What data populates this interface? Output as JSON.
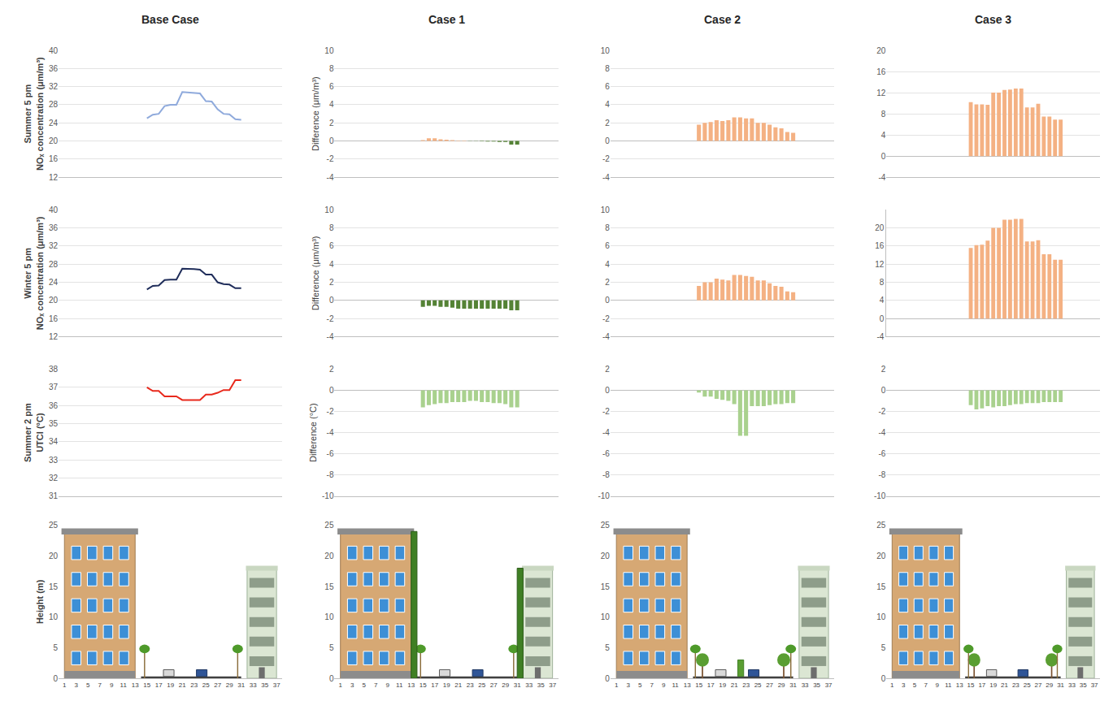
{
  "chart_data": [
    {
      "type": "line",
      "title": "Base Case",
      "y_label": [
        "Summer 5 pm",
        "NOₓ concentration (μm/m³)"
      ],
      "color": "#8faadc",
      "x": [
        15,
        16,
        17,
        18,
        19,
        20,
        21,
        22,
        23,
        24,
        25,
        26,
        27,
        28,
        29,
        30,
        31
      ],
      "values": [
        25,
        25.8,
        26,
        27.7,
        28,
        28,
        30.8,
        30.7,
        30.5,
        30.5,
        28.8,
        28.7,
        27,
        26,
        25.9,
        24.8,
        24.7
      ],
      "xlim": [
        0,
        38
      ],
      "ylim": [
        12,
        40
      ],
      "yticks": [
        12,
        16,
        20,
        24,
        28,
        32,
        36,
        40
      ],
      "grid": true,
      "tick_labels": "y"
    },
    {
      "type": "bar",
      "title": "Case 1",
      "y_label": "Difference (μm/m³)",
      "colors": [
        "#f4b183",
        "#f4b183",
        "#f4b183",
        "#f4b183",
        "#f4b183",
        "#f4b183",
        "#f4b183",
        "#f4b183",
        "#548235",
        "#548235",
        "#548235",
        "#548235",
        "#548235",
        "#548235",
        "#548235",
        "#548235",
        "#548235"
      ],
      "x": [
        15,
        16,
        17,
        18,
        19,
        20,
        21,
        22,
        23,
        24,
        25,
        26,
        27,
        28,
        29,
        30,
        31
      ],
      "values": [
        0.1,
        0.3,
        0.3,
        0.2,
        0.15,
        0.1,
        0.05,
        0.05,
        -0.02,
        -0.02,
        -0.03,
        -0.05,
        -0.05,
        -0.1,
        -0.1,
        -0.4,
        -0.4
      ],
      "xlim": [
        0,
        38
      ],
      "ylim": [
        -4,
        10
      ],
      "yticks": [
        -4,
        -2,
        0,
        2,
        4,
        6,
        8,
        10
      ],
      "grid": true,
      "tick_labels": "y"
    },
    {
      "type": "bar",
      "title": "Case 2",
      "color": "#f4b183",
      "x": [
        15,
        16,
        17,
        18,
        19,
        20,
        21,
        22,
        23,
        24,
        25,
        26,
        27,
        28,
        29,
        30,
        31
      ],
      "values": [
        1.8,
        2.0,
        2.1,
        2.3,
        2.2,
        2.3,
        2.6,
        2.6,
        2.5,
        2.5,
        2.0,
        2.0,
        1.8,
        1.5,
        1.4,
        1.0,
        0.9
      ],
      "xlim": [
        0,
        38
      ],
      "ylim": [
        -4,
        10
      ],
      "yticks": [
        -4,
        -2,
        0,
        2,
        4,
        6,
        8,
        10
      ],
      "grid": true,
      "tick_labels": "y"
    },
    {
      "type": "bar",
      "title": "Case 3",
      "color": "#f4b183",
      "x": [
        15,
        16,
        17,
        18,
        19,
        20,
        21,
        22,
        23,
        24,
        25,
        26,
        27,
        28,
        29,
        30,
        31
      ],
      "values": [
        10.2,
        9.8,
        9.8,
        9.7,
        12,
        12,
        12.5,
        12.6,
        12.8,
        12.8,
        9.2,
        9.2,
        9.9,
        7.5,
        7.5,
        6.9,
        6.9
      ],
      "xlim": [
        0,
        38
      ],
      "ylim": [
        -4,
        20
      ],
      "yticks": [
        -4,
        0,
        4,
        8,
        12,
        16,
        20
      ],
      "grid": true,
      "tick_labels": "y"
    },
    {
      "type": "line",
      "y_label": [
        "Winter 5 pm",
        "NOₓ concentration (μm/m³)"
      ],
      "color": "#1f2d5a",
      "x": [
        15,
        16,
        17,
        18,
        19,
        20,
        21,
        22,
        23,
        24,
        25,
        26,
        27,
        28,
        29,
        30,
        31
      ],
      "values": [
        22.4,
        23.2,
        23.3,
        24.5,
        24.6,
        24.6,
        27,
        27,
        26.9,
        26.8,
        25.7,
        25.7,
        24,
        23.6,
        23.5,
        22.7,
        22.7
      ],
      "xlim": [
        0,
        38
      ],
      "ylim": [
        12,
        40
      ],
      "yticks": [
        12,
        16,
        20,
        24,
        28,
        32,
        36,
        40
      ],
      "grid": true,
      "tick_labels": "y"
    },
    {
      "type": "bar",
      "y_label": "Difference (μm/m³)",
      "color": "#548235",
      "x": [
        15,
        16,
        17,
        18,
        19,
        20,
        21,
        22,
        23,
        24,
        25,
        26,
        27,
        28,
        29,
        30,
        31
      ],
      "values": [
        -0.7,
        -0.6,
        -0.6,
        -0.7,
        -0.7,
        -0.8,
        -0.9,
        -0.9,
        -0.9,
        -0.9,
        -0.9,
        -0.9,
        -0.9,
        -0.9,
        -0.9,
        -1.1,
        -1.1
      ],
      "xlim": [
        0,
        38
      ],
      "ylim": [
        -4,
        10
      ],
      "yticks": [
        -4,
        -2,
        0,
        2,
        4,
        6,
        8,
        10
      ],
      "grid": true,
      "tick_labels": "y"
    },
    {
      "type": "bar",
      "color": "#f4b183",
      "x": [
        15,
        16,
        17,
        18,
        19,
        20,
        21,
        22,
        23,
        24,
        25,
        26,
        27,
        28,
        29,
        30,
        31
      ],
      "values": [
        1.6,
        2.0,
        2.0,
        2.4,
        2.3,
        2.2,
        2.8,
        2.8,
        2.7,
        2.6,
        2.2,
        2.2,
        1.9,
        1.6,
        1.5,
        1.0,
        0.9
      ],
      "xlim": [
        0,
        38
      ],
      "ylim": [
        -4,
        10
      ],
      "yticks": [
        -4,
        -2,
        0,
        2,
        4,
        6,
        8,
        10
      ],
      "grid": true,
      "tick_labels": "y"
    },
    {
      "type": "bar",
      "color": "#f4b183",
      "x": [
        15,
        16,
        17,
        18,
        19,
        20,
        21,
        22,
        23,
        24,
        25,
        26,
        27,
        28,
        29,
        30,
        31
      ],
      "values": [
        15.6,
        16.2,
        16.3,
        17.2,
        20,
        20,
        21.8,
        21.8,
        22,
        22,
        17,
        17,
        17.3,
        14.2,
        14.2,
        13,
        13
      ],
      "xlim": [
        0,
        38
      ],
      "ylim": [
        -4,
        24
      ],
      "yticks": [
        -4,
        0,
        4,
        8,
        12,
        16,
        20
      ],
      "grid": true,
      "tick_labels": "y"
    },
    {
      "type": "line",
      "y_label": [
        "Summer 2 pm",
        "UTCI (°C)"
      ],
      "color": "#e8291c",
      "x": [
        15,
        16,
        17,
        18,
        19,
        20,
        21,
        22,
        23,
        24,
        25,
        26,
        27,
        28,
        29,
        30,
        31
      ],
      "values": [
        37,
        36.8,
        36.8,
        36.5,
        36.5,
        36.5,
        36.3,
        36.3,
        36.3,
        36.3,
        36.6,
        36.6,
        36.7,
        36.85,
        36.85,
        37.4,
        37.4
      ],
      "xlim": [
        0,
        38
      ],
      "ylim": [
        31,
        38
      ],
      "yticks": [
        31,
        32,
        33,
        34,
        35,
        36,
        37,
        38
      ],
      "grid": true,
      "tick_labels": "y"
    },
    {
      "type": "bar",
      "y_label": "Difference (°C)",
      "color": "#a9d18e",
      "x": [
        15,
        16,
        17,
        18,
        19,
        20,
        21,
        22,
        23,
        24,
        25,
        26,
        27,
        28,
        29,
        30,
        31
      ],
      "values": [
        -1.6,
        -1.4,
        -1.3,
        -1.2,
        -1.2,
        -1.1,
        -1.1,
        -1.1,
        -1.0,
        -1.0,
        -1.1,
        -1.1,
        -1.2,
        -1.2,
        -1.3,
        -1.6,
        -1.6
      ],
      "xlim": [
        0,
        38
      ],
      "ylim": [
        -10,
        2
      ],
      "yticks": [
        -10,
        -8,
        -6,
        -4,
        -2,
        0,
        2
      ],
      "grid": true,
      "tick_labels": "y"
    },
    {
      "type": "bar",
      "color": "#a9d18e",
      "x": [
        15,
        16,
        17,
        18,
        19,
        20,
        21,
        22,
        23,
        24,
        25,
        26,
        27,
        28,
        29,
        30,
        31
      ],
      "values": [
        -0.2,
        -0.6,
        -0.6,
        -0.8,
        -0.9,
        -1.0,
        -1.3,
        -4.3,
        -4.3,
        -1.5,
        -1.5,
        -1.5,
        -1.4,
        -1.3,
        -1.3,
        -1.2,
        -1.2
      ],
      "xlim": [
        0,
        38
      ],
      "ylim": [
        -10,
        2
      ],
      "yticks": [
        -10,
        -8,
        -6,
        -4,
        -2,
        0,
        2
      ],
      "grid": true,
      "tick_labels": "y"
    },
    {
      "type": "bar",
      "color": "#a9d18e",
      "x": [
        15,
        16,
        17,
        18,
        19,
        20,
        21,
        22,
        23,
        24,
        25,
        26,
        27,
        28,
        29,
        30,
        31
      ],
      "values": [
        -1.4,
        -1.8,
        -1.7,
        -1.5,
        -1.6,
        -1.5,
        -1.5,
        -1.4,
        -1.3,
        -1.3,
        -1.2,
        -1.2,
        -1.2,
        -1.1,
        -1.1,
        -1.1,
        -1.1
      ],
      "xlim": [
        0,
        38
      ],
      "ylim": [
        -10,
        2
      ],
      "yticks": [
        -10,
        -8,
        -6,
        -4,
        -2,
        0,
        2
      ],
      "grid": true,
      "tick_labels": "y"
    },
    {
      "type": "section",
      "y_label": "Height (m)",
      "xlim": [
        0,
        38
      ],
      "xticks": [
        1,
        3,
        5,
        7,
        9,
        11,
        13,
        15,
        17,
        19,
        21,
        23,
        25,
        27,
        29,
        31,
        33,
        35,
        37
      ],
      "ylim": [
        0,
        25
      ],
      "yticks": [
        0,
        5,
        10,
        15,
        20,
        25
      ],
      "grid": false
    },
    {
      "type": "section",
      "xlim": [
        0,
        38
      ],
      "xticks": [
        1,
        3,
        5,
        7,
        9,
        11,
        13,
        15,
        17,
        19,
        21,
        23,
        25,
        27,
        29,
        31,
        33,
        35,
        37
      ],
      "ylim": [
        0,
        25
      ],
      "yticks": [
        0,
        5,
        10,
        15,
        20,
        25
      ],
      "grid": false
    },
    {
      "type": "section",
      "xlim": [
        0,
        38
      ],
      "xticks": [
        1,
        3,
        5,
        7,
        9,
        11,
        13,
        15,
        17,
        19,
        21,
        23,
        25,
        27,
        29,
        31,
        33,
        35,
        37
      ],
      "ylim": [
        0,
        25
      ],
      "yticks": [
        0,
        5,
        10,
        15,
        20,
        25
      ],
      "grid": false
    },
    {
      "type": "section",
      "xlim": [
        0,
        38
      ],
      "xticks": [
        1,
        3,
        5,
        7,
        9,
        11,
        13,
        15,
        17,
        19,
        21,
        23,
        25,
        27,
        29,
        31,
        33,
        35,
        37
      ],
      "ylim": [
        0,
        25
      ],
      "yticks": [
        0,
        5,
        10,
        15,
        20,
        25
      ],
      "grid": false
    }
  ]
}
